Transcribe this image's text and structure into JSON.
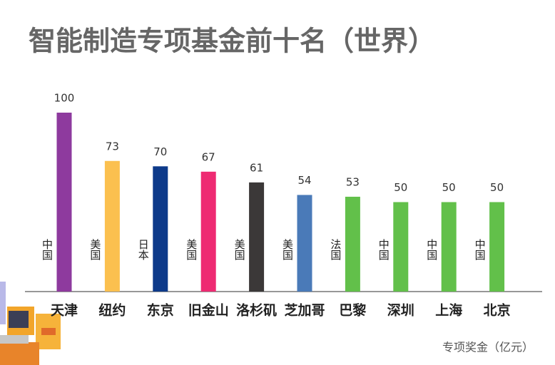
{
  "chart_data": {
    "type": "bar",
    "title": "智能制造专项基金前十名（世界）",
    "categories": [
      "天津",
      "纽约",
      "东京",
      "旧金山",
      "洛杉矶",
      "芝加哥",
      "巴黎",
      "深圳",
      "上海",
      "北京"
    ],
    "values": [
      100,
      73,
      70,
      67,
      61,
      54,
      53,
      50,
      50,
      50
    ],
    "countries": [
      "中国",
      "美国",
      "日本",
      "美国",
      "美国",
      "美国",
      "法国",
      "中国",
      "中国",
      "中国"
    ],
    "colors": [
      "#8e3a9e",
      "#fbc04f",
      "#0d3a8a",
      "#ee2a72",
      "#3b3838",
      "#4a7ab8",
      "#62c04a",
      "#62c04a",
      "#62c04a",
      "#62c04a"
    ],
    "unit": "专项奖金（亿元）"
  }
}
